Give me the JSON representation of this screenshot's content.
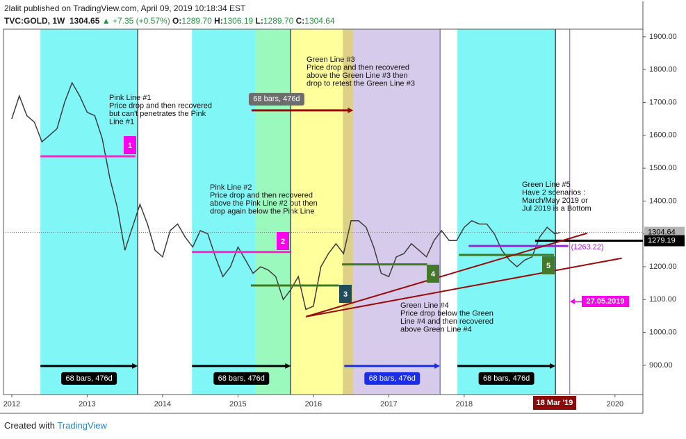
{
  "header": {
    "line1": "2lalit published on TradingView.com, April 09, 2019 10:18:34 EST",
    "symbol": "TVC:GOLD, 1W",
    "last": "1304.65",
    "arrow": "▲",
    "change": "+7.35 (+0.57%)",
    "ohlc": [
      {
        "label": "O:",
        "value": "1289.70"
      },
      {
        "label": "H:",
        "value": "1306.19"
      },
      {
        "label": "L:",
        "value": "1289.70"
      },
      {
        "label": "C:",
        "value": "1304.64"
      }
    ]
  },
  "footer": {
    "created": "Created with",
    "brand": "TradingView"
  },
  "chart_data": {
    "type": "line",
    "color": "#3d3d3d",
    "x": [
      2012.0,
      2012.1,
      2012.2,
      2012.3,
      2012.4,
      2012.5,
      2012.6,
      2012.7,
      2012.8,
      2012.9,
      2013.0,
      2013.1,
      2013.2,
      2013.3,
      2013.4,
      2013.5,
      2013.6,
      2013.7,
      2013.8,
      2013.9,
      2014.0,
      2014.1,
      2014.2,
      2014.3,
      2014.4,
      2014.5,
      2014.6,
      2014.7,
      2014.8,
      2014.9,
      2015.0,
      2015.1,
      2015.2,
      2015.3,
      2015.4,
      2015.5,
      2015.6,
      2015.7,
      2015.8,
      2015.9,
      2016.0,
      2016.1,
      2016.2,
      2016.3,
      2016.4,
      2016.5,
      2016.6,
      2016.7,
      2016.8,
      2016.9,
      2017.0,
      2017.1,
      2017.2,
      2017.3,
      2017.4,
      2017.5,
      2017.6,
      2017.7,
      2017.8,
      2017.9,
      2018.0,
      2018.1,
      2018.2,
      2018.3,
      2018.4,
      2018.5,
      2018.6,
      2018.7,
      2018.8,
      2018.9,
      2019.0,
      2019.1,
      2019.2,
      2019.27
    ],
    "values": [
      1650,
      1720,
      1660,
      1640,
      1580,
      1600,
      1620,
      1700,
      1760,
      1720,
      1670,
      1660,
      1590,
      1470,
      1380,
      1250,
      1320,
      1390,
      1330,
      1250,
      1230,
      1310,
      1330,
      1290,
      1260,
      1310,
      1300,
      1230,
      1170,
      1200,
      1260,
      1220,
      1180,
      1200,
      1190,
      1170,
      1100,
      1130,
      1170,
      1070,
      1080,
      1200,
      1240,
      1270,
      1240,
      1340,
      1340,
      1320,
      1260,
      1180,
      1170,
      1230,
      1240,
      1270,
      1250,
      1230,
      1280,
      1310,
      1280,
      1280,
      1320,
      1340,
      1330,
      1330,
      1300,
      1250,
      1220,
      1200,
      1220,
      1230,
      1290,
      1320,
      1300,
      1304
    ],
    "xlim": [
      2011.89,
      2020.37
    ],
    "ylim": [
      811,
      1923
    ],
    "xticks": [
      2012,
      2013,
      2014,
      2015,
      2016,
      2017,
      2018,
      2020
    ],
    "yticks": [
      {
        "value": 900,
        "label": "900.00"
      },
      {
        "value": 1000,
        "label": "1000.00"
      },
      {
        "value": 1100,
        "label": "1100.00"
      },
      {
        "value": 1200,
        "label": "1200.00"
      },
      {
        "value": 1300,
        "label": "1300.00"
      },
      {
        "value": 1400,
        "label": "1400.00"
      },
      {
        "value": 1500,
        "label": "1500.00"
      },
      {
        "value": 1600,
        "label": "1600.00"
      },
      {
        "value": 1700,
        "label": "1700.00"
      },
      {
        "value": 1800,
        "label": "1800.00"
      },
      {
        "value": 1900,
        "label": "1900.00"
      }
    ],
    "zones": [
      {
        "x": [
          2012.38,
          2013.67
        ],
        "color": "#80f6f6"
      },
      {
        "x": [
          2014.39,
          2015.7
        ],
        "color": "#80f6f6"
      },
      {
        "x": [
          2015.23,
          2015.7
        ],
        "color": "#9cf9bd"
      },
      {
        "x": [
          2015.7,
          2016.39
        ],
        "color": "#ffff9c"
      },
      {
        "x": [
          2016.39,
          2016.53
        ],
        "color": "#ddd188"
      },
      {
        "x": [
          2016.53,
          2017.68
        ],
        "color": "#d6cbea"
      },
      {
        "x": [
          2017.91,
          2019.21
        ],
        "color": "#80f6f6"
      }
    ],
    "vlines": [
      {
        "x": 2013.67,
        "color": "#000000"
      },
      {
        "x": 2015.7,
        "color": "#000000"
      },
      {
        "x": 2019.21,
        "color": "#000000"
      },
      {
        "x": 2017.68,
        "color": "#5a3fc0"
      },
      {
        "x": 2019.4,
        "color": "#a040c0"
      }
    ],
    "drawings": [
      {
        "x": [
          2012.38,
          2013.64
        ],
        "y": [
          1536,
          1536
        ],
        "color": "#ff22cc"
      },
      {
        "x": [
          2014.39,
          2015.7
        ],
        "y": [
          1245,
          1245
        ],
        "color": "#ff22cc"
      },
      {
        "x": [
          2015.17,
          2016.34
        ],
        "y": [
          1143,
          1143
        ],
        "color": "#3f7a22"
      },
      {
        "x": [
          2016.38,
          2017.51
        ],
        "y": [
          1207,
          1207
        ],
        "color": "#3f7a22"
      },
      {
        "x": [
          2017.93,
          2019.19
        ],
        "y": [
          1236,
          1236
        ],
        "color": "#3f7a22"
      },
      {
        "x": [
          2018.06,
          2019.38
        ],
        "y": [
          1263.22,
          1263.22
        ],
        "color": "#a020e0",
        "label": "(1263.22)"
      },
      {
        "x": [
          2018.94,
          2020.37
        ],
        "y": [
          1279.19,
          1279.19
        ],
        "color": "#000000"
      },
      {
        "x": [
          2015.9,
          2019.63
        ],
        "y": [
          1048,
          1302
        ],
        "color": "#9b0a0a"
      },
      {
        "x": [
          2015.9,
          2020.09
        ],
        "y": [
          1048,
          1226
        ],
        "color": "#9b0a0a"
      }
    ],
    "arrows": [
      {
        "x": [
          2015.18,
          2016.53
        ],
        "y": 1676,
        "color": "#9b0a0a",
        "badge": "68 bars, 476d",
        "badge_color": "#6d6d6d"
      },
      {
        "x": [
          2012.38,
          2013.67
        ],
        "y": 898,
        "color": "#000000",
        "badge": "68 bars, 476d",
        "badge_color": "#000000"
      },
      {
        "x": [
          2014.39,
          2015.7
        ],
        "y": 898,
        "color": "#000000",
        "badge": "68 bars, 476d",
        "badge_color": "#000000"
      },
      {
        "x": [
          2016.41,
          2017.68
        ],
        "y": 898,
        "color": "#1a2ee8",
        "badge": "68 bars, 476d",
        "badge_color": "#1a2ee8"
      },
      {
        "x": [
          2017.91,
          2019.21
        ],
        "y": 898,
        "color": "#000000",
        "badge": "68 bars, 476d",
        "badge_color": "#000000"
      }
    ],
    "markers": [
      {
        "label": "1",
        "color": "#ff00ee"
      },
      {
        "label": "2",
        "color": "#ff00ee"
      },
      {
        "label": "3",
        "color": "#1f4c5c"
      },
      {
        "label": "4",
        "color": "#44782a"
      },
      {
        "label": "5",
        "color": "#44782a"
      }
    ],
    "annotations": [
      {
        "lines": [
          "Pink Line #1",
          "Price drop and then recovered",
          "but can't  penetrates the  Pink",
          "Line #1"
        ]
      },
      {
        "lines": [
          "Green Line #3",
          "Price drop and then recovered",
          "above the Green Line #3 then",
          "drop to retest the Green Line #3"
        ]
      },
      {
        "lines": [
          "Pink Line #2",
          "Price drop and then recovered",
          "above the Pink Line #2 but then",
          "drop again below the Pink Line"
        ]
      },
      {
        "lines": [
          "Green Line #4",
          "Price drop below the Green",
          "Line #4 and then recovered",
          "above Green Line #4"
        ]
      },
      {
        "lines": [
          "Green Line #5",
          "Have 2 scenarios :",
          "March/May 2019 or",
          "Jul 2019 is a Bottom"
        ]
      }
    ],
    "price_labels": [
      {
        "value": 1304.64,
        "bg": "#b4b4b4",
        "fg": "#000000",
        "line": "dotted"
      },
      {
        "value": 1279.19,
        "bg": "#000000",
        "fg": "#ffffff"
      }
    ],
    "date_marker": {
      "label": "27.05.2019",
      "color": "#ff00ee"
    },
    "cursor_label": {
      "label": "18 Mar '19",
      "color": "#8b0a0a"
    }
  }
}
